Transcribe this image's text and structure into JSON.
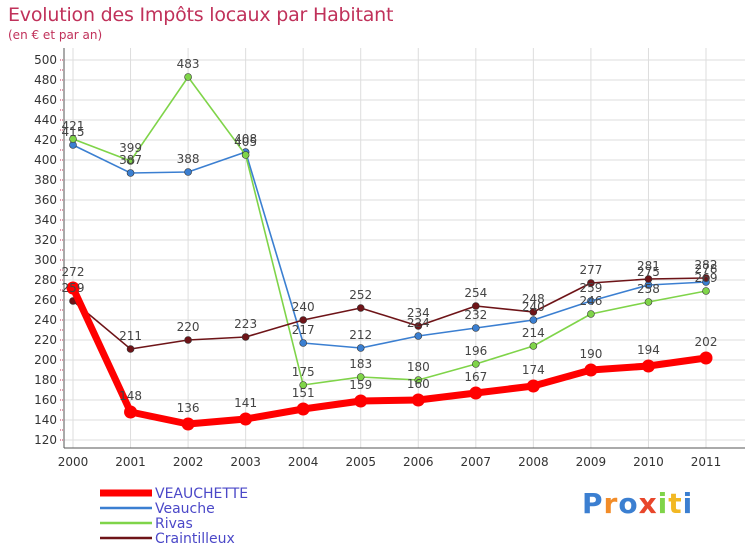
{
  "title": "Evolution des Impôts locaux par Habitant",
  "subtitle": "(en € et par an)",
  "logo": "Proxiti",
  "colors": {
    "title": "#c0315a",
    "grid": "#dddddd",
    "axis": "#555555",
    "legend_text": "#4b48c8"
  },
  "chart_data": {
    "type": "line",
    "title": "Evolution des Impôts locaux par Habitant",
    "subtitle": "(en € et par an)",
    "xlabel": "",
    "ylabel": "",
    "x": [
      "2000",
      "2001",
      "2002",
      "2003",
      "2004",
      "2005",
      "2006",
      "2007",
      "2008",
      "2009",
      "2010",
      "2011"
    ],
    "ylim": [
      120,
      500
    ],
    "yticks": [
      120,
      140,
      160,
      180,
      200,
      220,
      240,
      260,
      280,
      300,
      320,
      340,
      360,
      380,
      400,
      420,
      440,
      460,
      480,
      500
    ],
    "grid": true,
    "legend_position": "bottom-left",
    "series": [
      {
        "name": "VEAUCHETTE",
        "color": "#ff0000",
        "thick": true,
        "values": [
          272,
          148,
          136,
          141,
          151,
          159,
          160,
          167,
          174,
          190,
          194,
          202
        ],
        "labels": [
          "272",
          "148",
          "136",
          "141",
          "151",
          "159",
          "160",
          "167",
          "174",
          "190",
          "194",
          "202"
        ]
      },
      {
        "name": "Veauche",
        "color": "#3b7fd1",
        "thick": false,
        "values": [
          415,
          387,
          388,
          408,
          217,
          212,
          224,
          232,
          240,
          259,
          275,
          278
        ],
        "labels": [
          "415",
          "387",
          "388",
          "408",
          "217",
          "212",
          "224",
          "232",
          "240",
          "259",
          "275",
          "278"
        ]
      },
      {
        "name": "Rivas",
        "color": "#7fd449",
        "thick": false,
        "values": [
          421,
          399,
          483,
          405,
          175,
          183,
          180,
          196,
          214,
          246,
          258,
          269
        ],
        "labels": [
          "421",
          "399",
          "483",
          "405",
          "175",
          "183",
          "180",
          "196",
          "214",
          "246",
          "258",
          "269"
        ]
      },
      {
        "name": "Craintilleux",
        "color": "#6e1418",
        "thick": false,
        "values": [
          259,
          211,
          220,
          223,
          240,
          252,
          234,
          254,
          248,
          277,
          281,
          282
        ],
        "labels": [
          "259",
          "211",
          "220",
          "223",
          "240",
          "252",
          "234",
          "254",
          "248",
          "277",
          "281",
          "282"
        ]
      }
    ]
  }
}
